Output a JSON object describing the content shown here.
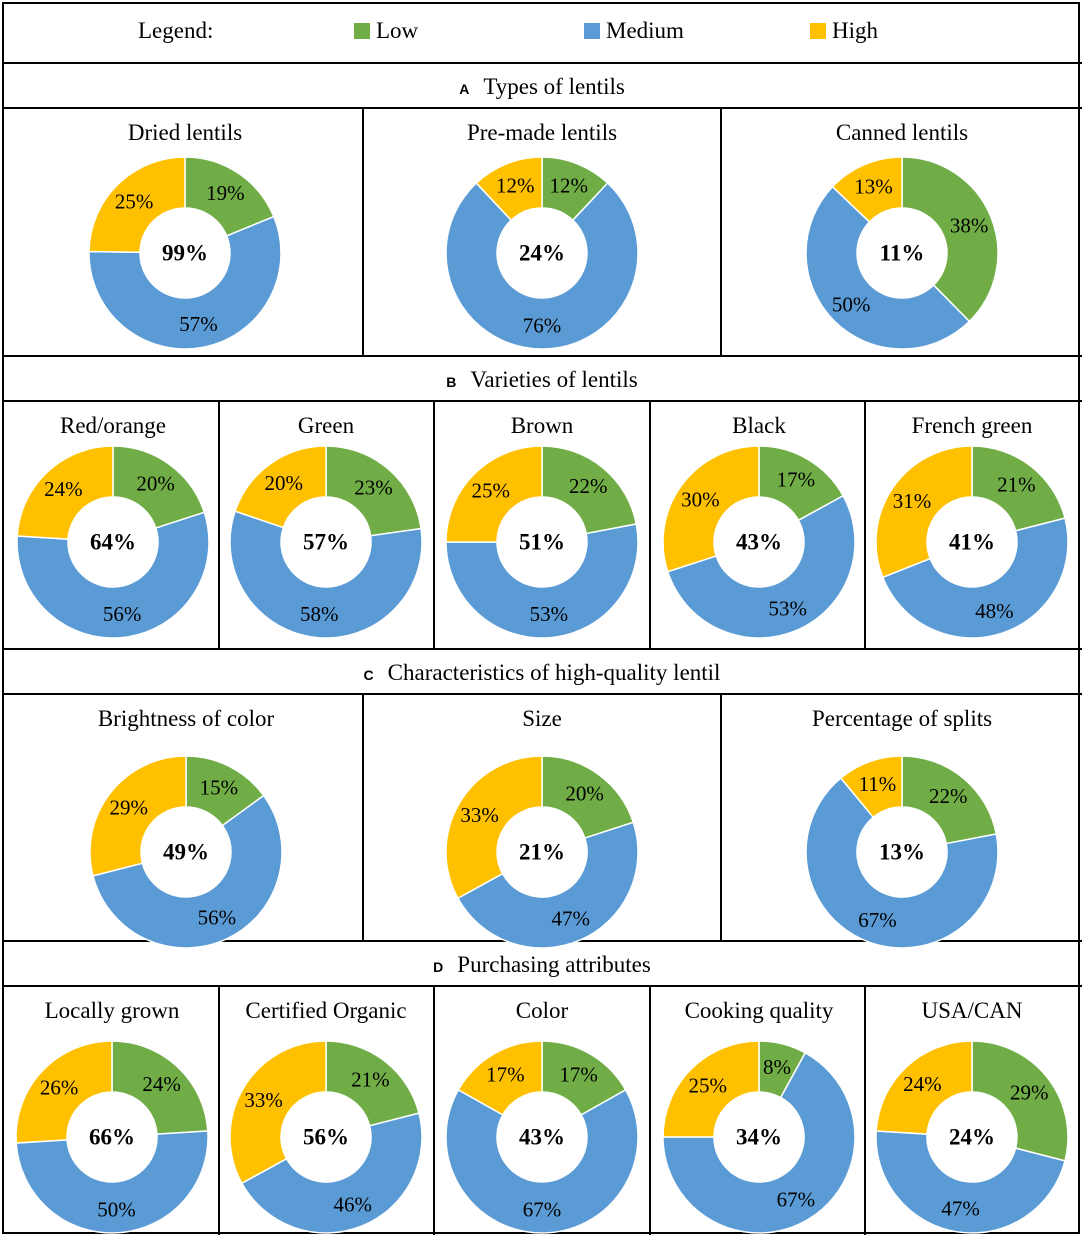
{
  "legend": {
    "label": "Legend:",
    "items": [
      {
        "name": "Low",
        "color": "#70AD47"
      },
      {
        "name": "Medium",
        "color": "#5B9BD5"
      },
      {
        "name": "High",
        "color": "#FFC000"
      }
    ]
  },
  "sections": [
    {
      "letter": "A",
      "title": "Types of lentils"
    },
    {
      "letter": "B",
      "title": "Varieties of lentils"
    },
    {
      "letter": "C",
      "title": "Characteristics of high-quality lentil"
    },
    {
      "letter": "D",
      "title": "Purchasing attributes"
    }
  ],
  "chart_data": [
    {
      "type": "pie",
      "section": "A",
      "title": "Dried lentils",
      "center": "99%",
      "categories": [
        "Low",
        "Medium",
        "High"
      ],
      "values": [
        19,
        57,
        25
      ],
      "labels": [
        "19%",
        "57%",
        "25%"
      ]
    },
    {
      "type": "pie",
      "section": "A",
      "title": "Pre-made lentils",
      "center": "24%",
      "categories": [
        "Low",
        "Medium",
        "High"
      ],
      "values": [
        12,
        76,
        12
      ],
      "labels": [
        "12%",
        "76%",
        "12%"
      ]
    },
    {
      "type": "pie",
      "section": "A",
      "title": "Canned lentils",
      "center": "11%",
      "categories": [
        "Low",
        "Medium",
        "High"
      ],
      "values": [
        38,
        50,
        13
      ],
      "labels": [
        "38%",
        "50%",
        "13%"
      ]
    },
    {
      "type": "pie",
      "section": "B",
      "title": "Red/orange",
      "center": "64%",
      "categories": [
        "Low",
        "Medium",
        "High"
      ],
      "values": [
        20,
        56,
        24
      ],
      "labels": [
        "20%",
        "56%",
        "24%"
      ]
    },
    {
      "type": "pie",
      "section": "B",
      "title": "Green",
      "center": "57%",
      "categories": [
        "Low",
        "Medium",
        "High"
      ],
      "values": [
        23,
        58,
        20
      ],
      "labels": [
        "23%",
        "58%",
        "20%"
      ]
    },
    {
      "type": "pie",
      "section": "B",
      "title": "Brown",
      "center": "51%",
      "categories": [
        "Low",
        "Medium",
        "High"
      ],
      "values": [
        22,
        53,
        25
      ],
      "labels": [
        "22%",
        "53%",
        "25%"
      ]
    },
    {
      "type": "pie",
      "section": "B",
      "title": "Black",
      "center": "43%",
      "categories": [
        "Low",
        "Medium",
        "High"
      ],
      "values": [
        17,
        53,
        30
      ],
      "labels": [
        "17%",
        "53%",
        "30%"
      ]
    },
    {
      "type": "pie",
      "section": "B",
      "title": "French green",
      "center": "41%",
      "categories": [
        "Low",
        "Medium",
        "High"
      ],
      "values": [
        21,
        48,
        31
      ],
      "labels": [
        "21%",
        "48%",
        "31%"
      ]
    },
    {
      "type": "pie",
      "section": "C",
      "title": "Brightness of color",
      "center": "49%",
      "categories": [
        "Low",
        "Medium",
        "High"
      ],
      "values": [
        15,
        56,
        29
      ],
      "labels": [
        "15%",
        "56%",
        "29%"
      ]
    },
    {
      "type": "pie",
      "section": "C",
      "title": "Size",
      "center": "21%",
      "categories": [
        "Low",
        "Medium",
        "High"
      ],
      "values": [
        20,
        47,
        33
      ],
      "labels": [
        "20%",
        "47%",
        "33%"
      ]
    },
    {
      "type": "pie",
      "section": "C",
      "title": "Percentage of splits",
      "center": "13%",
      "categories": [
        "Low",
        "Medium",
        "High"
      ],
      "values": [
        22,
        67,
        11
      ],
      "labels": [
        "22%",
        "67%",
        "11%"
      ]
    },
    {
      "type": "pie",
      "section": "D",
      "title": "Locally grown",
      "center": "66%",
      "categories": [
        "Low",
        "Medium",
        "High"
      ],
      "values": [
        24,
        50,
        26
      ],
      "labels": [
        "24%",
        "50%",
        "26%"
      ]
    },
    {
      "type": "pie",
      "section": "D",
      "title": "Certified Organic",
      "center": "56%",
      "categories": [
        "Low",
        "Medium",
        "High"
      ],
      "values": [
        21,
        46,
        33
      ],
      "labels": [
        "21%",
        "46%",
        "33%"
      ]
    },
    {
      "type": "pie",
      "section": "D",
      "title": "Color",
      "center": "43%",
      "categories": [
        "Low",
        "Medium",
        "High"
      ],
      "values": [
        17,
        67,
        17
      ],
      "labels": [
        "17%",
        "67%",
        "17%"
      ]
    },
    {
      "type": "pie",
      "section": "D",
      "title": "Cooking quality",
      "center": "34%",
      "categories": [
        "Low",
        "Medium",
        "High"
      ],
      "values": [
        8,
        67,
        25
      ],
      "labels": [
        "8%",
        "67%",
        "25%"
      ]
    },
    {
      "type": "pie",
      "section": "D",
      "title": "USA/CAN",
      "center": "24%",
      "categories": [
        "Low",
        "Medium",
        "High"
      ],
      "values": [
        29,
        47,
        24
      ],
      "labels": [
        "29%",
        "47%",
        "24%"
      ]
    }
  ]
}
